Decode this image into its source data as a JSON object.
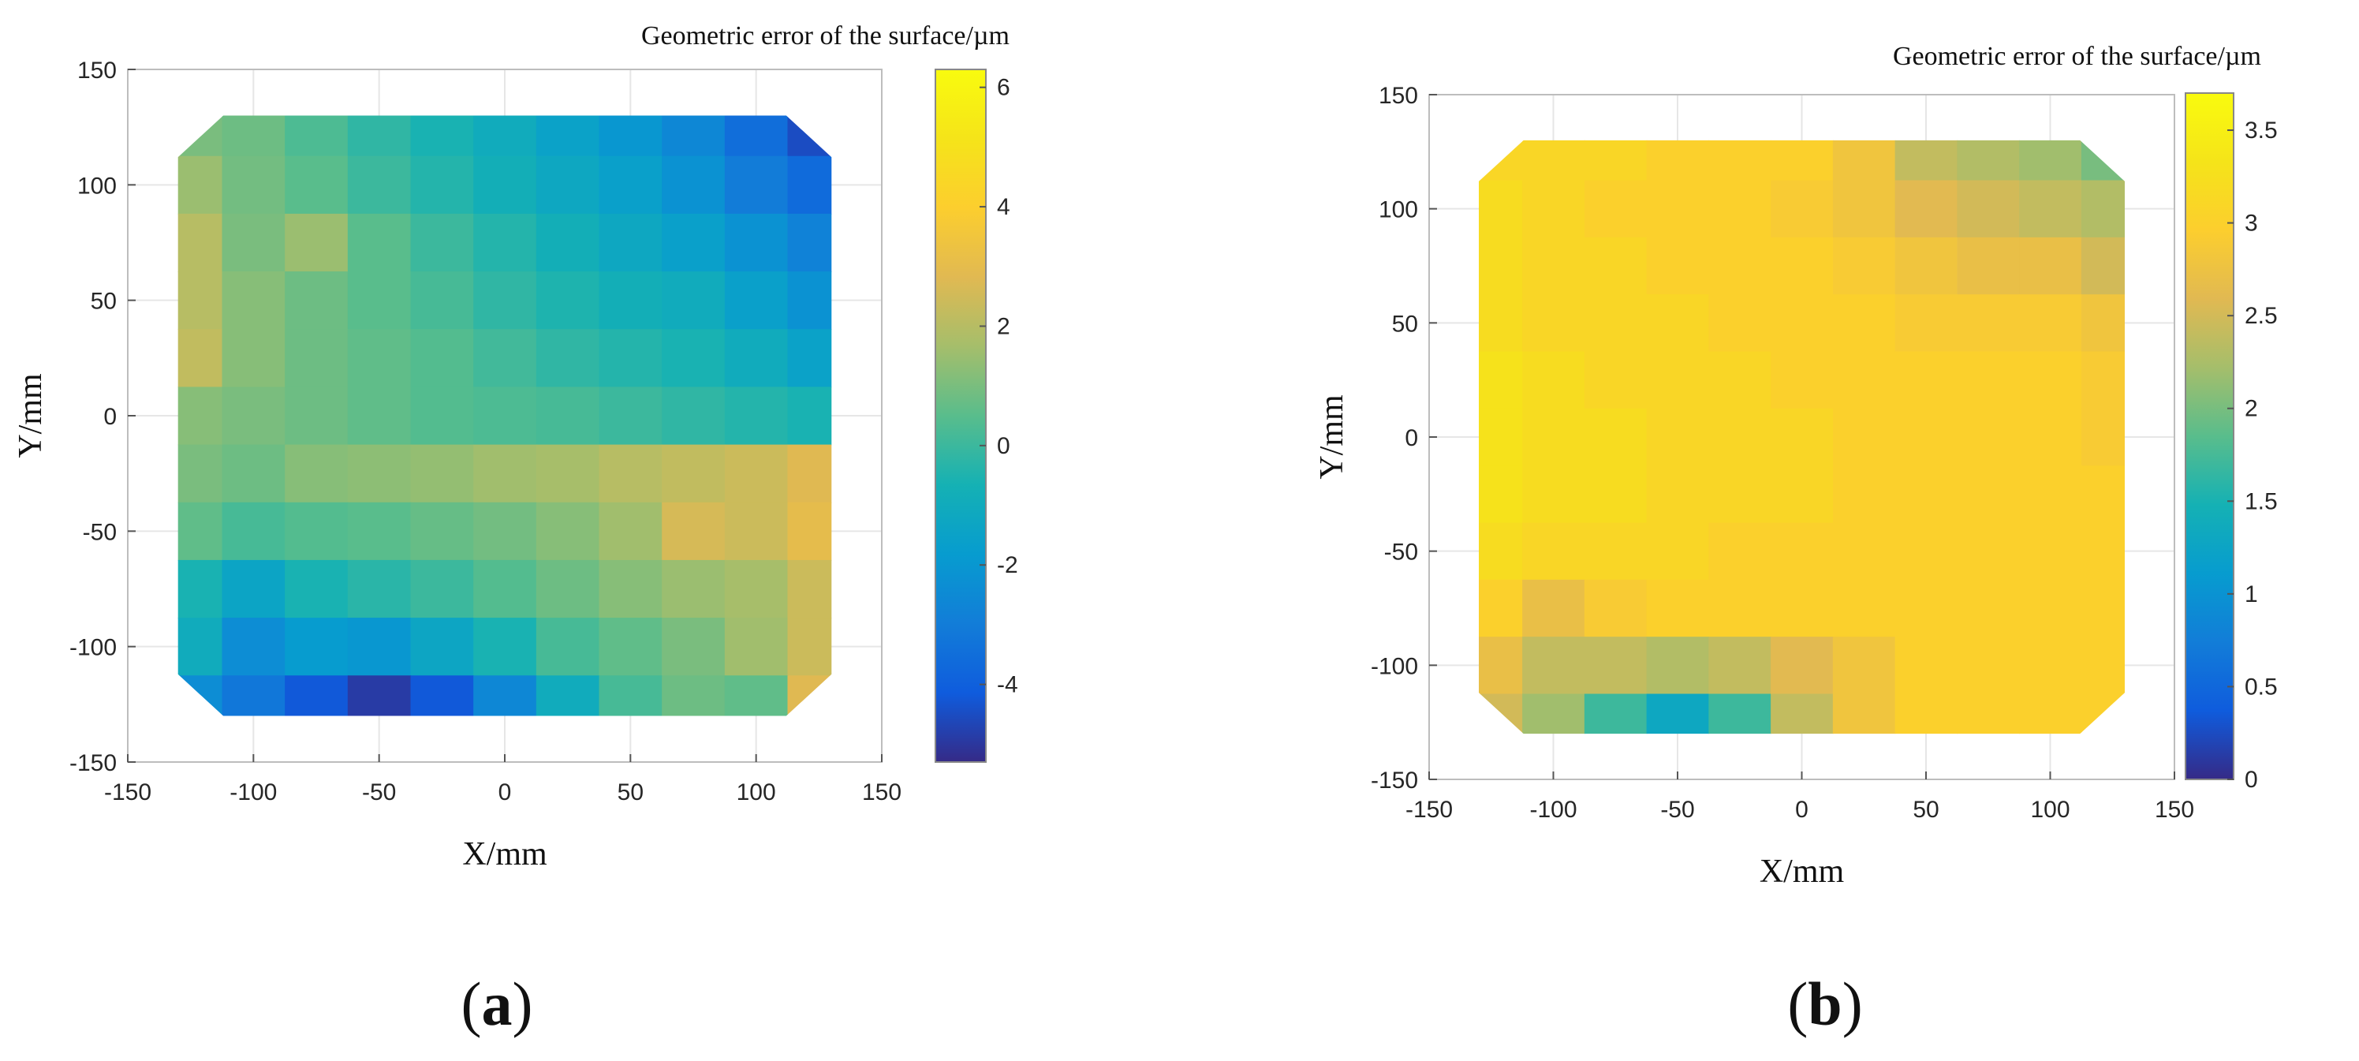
{
  "panels": [
    {
      "id": "a",
      "caption": {
        "open": "(",
        "letter": "a",
        "close": ")"
      },
      "colorbar_title": "Geometric error of the surface/µm",
      "xlabel": "X/mm",
      "ylabel": "Y/mm"
    },
    {
      "id": "b",
      "caption": {
        "open": "(",
        "letter": "b",
        "close": ")"
      },
      "colorbar_title": "Geometric error of the surface/µm",
      "xlabel": "X/mm",
      "ylabel": "Y/mm"
    }
  ],
  "chart_data": [
    {
      "type": "heatmap",
      "title": "",
      "xlabel": "X/mm",
      "ylabel": "Y/mm",
      "colorbar_label": "Geometric error of the surface/µm",
      "xlim": [
        -150,
        150
      ],
      "ylim": [
        -150,
        150
      ],
      "xticks": [
        -150,
        -100,
        -50,
        0,
        50,
        100,
        150
      ],
      "yticks": [
        -150,
        -100,
        -50,
        0,
        50,
        100,
        150
      ],
      "colorbar_range": [
        -5.3,
        6.3
      ],
      "colorbar_ticks": [
        -4,
        -2,
        0,
        2,
        4,
        6
      ],
      "colormap": "parula",
      "grid": true,
      "x": [
        -125,
        -100,
        -75,
        -50,
        -25,
        0,
        25,
        50,
        75,
        100,
        125
      ],
      "y": [
        125,
        100,
        75,
        50,
        25,
        0,
        -25,
        -50,
        -75,
        -100,
        -125
      ],
      "z": [
        [
          1.0,
          0.8,
          0.3,
          -0.2,
          -0.6,
          -1.0,
          -1.5,
          -2.0,
          -2.6,
          -3.5,
          -4.5
        ],
        [
          1.5,
          0.9,
          0.5,
          0.0,
          -0.4,
          -0.8,
          -1.2,
          -1.6,
          -2.2,
          -3.0,
          -3.6
        ],
        [
          2.0,
          1.0,
          1.5,
          0.5,
          0.0,
          -0.4,
          -0.8,
          -1.2,
          -1.6,
          -2.2,
          -2.8
        ],
        [
          2.0,
          1.2,
          0.8,
          0.5,
          0.2,
          -0.2,
          -0.5,
          -0.8,
          -1.0,
          -1.6,
          -2.2
        ],
        [
          2.2,
          1.2,
          0.8,
          0.6,
          0.4,
          0.1,
          -0.2,
          -0.4,
          -0.6,
          -1.0,
          -1.5
        ],
        [
          1.2,
          1.0,
          0.8,
          0.6,
          0.4,
          0.3,
          0.2,
          0.0,
          -0.2,
          -0.4,
          -0.6
        ],
        [
          1.0,
          0.8,
          1.2,
          1.3,
          1.4,
          1.6,
          1.7,
          2.0,
          2.2,
          2.4,
          2.8
        ],
        [
          0.6,
          0.2,
          0.4,
          0.5,
          0.7,
          0.9,
          1.2,
          1.6,
          2.6,
          2.4,
          3.0
        ],
        [
          -0.6,
          -1.4,
          -0.6,
          -0.3,
          0.0,
          0.4,
          0.8,
          1.2,
          1.5,
          1.7,
          2.4
        ],
        [
          -1.0,
          -2.4,
          -1.8,
          -2.0,
          -1.3,
          -0.6,
          0.2,
          0.6,
          1.0,
          1.6,
          2.4
        ],
        [
          -2.4,
          -3.2,
          -4.2,
          -4.9,
          -4.2,
          -2.6,
          -1.0,
          0.2,
          0.8,
          0.6,
          2.8
        ]
      ]
    },
    {
      "type": "heatmap",
      "title": "",
      "xlabel": "X/mm",
      "ylabel": "Y/mm",
      "colorbar_label": "Geometric error of the surface/µm",
      "xlim": [
        -150,
        150
      ],
      "ylim": [
        -150,
        150
      ],
      "xticks": [
        -150,
        -100,
        -50,
        0,
        50,
        100,
        150
      ],
      "yticks": [
        -150,
        -100,
        -50,
        0,
        50,
        100,
        150
      ],
      "colorbar_range": [
        0,
        3.7
      ],
      "colorbar_ticks": [
        0,
        0.5,
        1,
        1.5,
        2,
        2.5,
        3,
        3.5
      ],
      "colormap": "parula",
      "grid": true,
      "x": [
        -125,
        -100,
        -75,
        -50,
        -25,
        0,
        25,
        50,
        75,
        100,
        125
      ],
      "y": [
        125,
        100,
        75,
        50,
        25,
        0,
        -25,
        -50,
        -75,
        -100,
        -125
      ],
      "z": [
        [
          3.1,
          3.1,
          3.1,
          3.0,
          3.0,
          3.0,
          2.8,
          2.4,
          2.3,
          2.2,
          2.0
        ],
        [
          3.2,
          3.1,
          3.0,
          3.0,
          3.0,
          2.9,
          2.8,
          2.6,
          2.5,
          2.4,
          2.3
        ],
        [
          3.2,
          3.1,
          3.1,
          3.0,
          3.0,
          3.0,
          2.9,
          2.8,
          2.7,
          2.7,
          2.5
        ],
        [
          3.2,
          3.1,
          3.1,
          3.1,
          3.0,
          3.0,
          3.0,
          2.9,
          2.9,
          2.9,
          2.8
        ],
        [
          3.3,
          3.2,
          3.1,
          3.1,
          3.1,
          3.0,
          3.0,
          3.0,
          3.0,
          3.0,
          2.9
        ],
        [
          3.3,
          3.2,
          3.2,
          3.1,
          3.1,
          3.1,
          3.0,
          3.0,
          3.0,
          3.0,
          2.9
        ],
        [
          3.3,
          3.2,
          3.2,
          3.1,
          3.1,
          3.1,
          3.0,
          3.0,
          3.0,
          3.0,
          3.0
        ],
        [
          3.2,
          3.1,
          3.1,
          3.1,
          3.0,
          3.0,
          3.0,
          3.0,
          3.0,
          3.0,
          3.0
        ],
        [
          3.0,
          2.7,
          2.9,
          3.0,
          3.0,
          3.0,
          3.0,
          3.0,
          3.0,
          3.0,
          3.0
        ],
        [
          2.7,
          2.4,
          2.4,
          2.3,
          2.4,
          2.6,
          2.8,
          3.0,
          3.0,
          3.0,
          3.0
        ],
        [
          2.5,
          2.2,
          1.7,
          1.3,
          1.7,
          2.4,
          2.8,
          3.0,
          3.0,
          3.0,
          3.0
        ]
      ]
    }
  ]
}
